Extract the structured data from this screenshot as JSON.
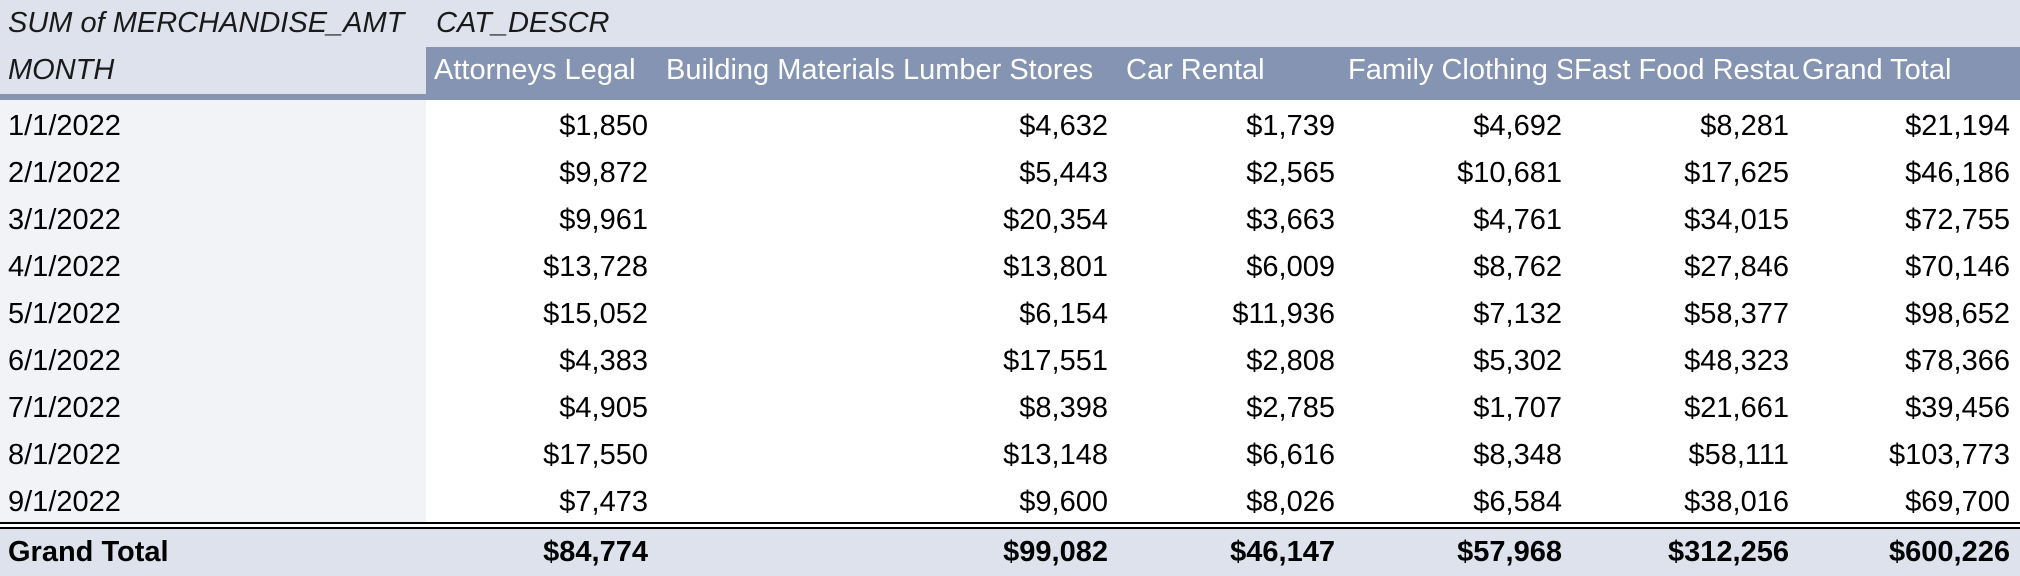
{
  "pivot": {
    "value_field": "SUM of MERCHANDISE_AMT",
    "column_field": "CAT_DESCR",
    "row_field": "MONTH",
    "columns": [
      "Attorneys Legal",
      "Building Materials Lumber Stores",
      "Car Rental",
      "Family Clothing Stores",
      "Fast Food Restaurants",
      "Grand Total"
    ],
    "rows": [
      {
        "month": "1/1/2022",
        "values": [
          "$1,850",
          "$4,632",
          "$1,739",
          "$4,692",
          "$8,281",
          "$21,194"
        ]
      },
      {
        "month": "2/1/2022",
        "values": [
          "$9,872",
          "$5,443",
          "$2,565",
          "$10,681",
          "$17,625",
          "$46,186"
        ]
      },
      {
        "month": "3/1/2022",
        "values": [
          "$9,961",
          "$20,354",
          "$3,663",
          "$4,761",
          "$34,015",
          "$72,755"
        ]
      },
      {
        "month": "4/1/2022",
        "values": [
          "$13,728",
          "$13,801",
          "$6,009",
          "$8,762",
          "$27,846",
          "$70,146"
        ]
      },
      {
        "month": "5/1/2022",
        "values": [
          "$15,052",
          "$6,154",
          "$11,936",
          "$7,132",
          "$58,377",
          "$98,652"
        ]
      },
      {
        "month": "6/1/2022",
        "values": [
          "$4,383",
          "$17,551",
          "$2,808",
          "$5,302",
          "$48,323",
          "$78,366"
        ]
      },
      {
        "month": "7/1/2022",
        "values": [
          "$4,905",
          "$8,398",
          "$2,785",
          "$1,707",
          "$21,661",
          "$39,456"
        ]
      },
      {
        "month": "8/1/2022",
        "values": [
          "$17,550",
          "$13,148",
          "$6,616",
          "$8,348",
          "$58,111",
          "$103,773"
        ]
      },
      {
        "month": "9/1/2022",
        "values": [
          "$7,473",
          "$9,600",
          "$8,026",
          "$6,584",
          "$38,016",
          "$69,700"
        ]
      }
    ],
    "grand_total": {
      "label": "Grand Total",
      "values": [
        "$84,774",
        "$99,082",
        "$46,147",
        "$57,968",
        "$312,256",
        "$600,226"
      ]
    },
    "colors": {
      "header_fill": "#8494b2",
      "header_text": "#ffffff",
      "band_fill": "#dde2ec",
      "row_label_fill": "#f1f3f7"
    }
  }
}
